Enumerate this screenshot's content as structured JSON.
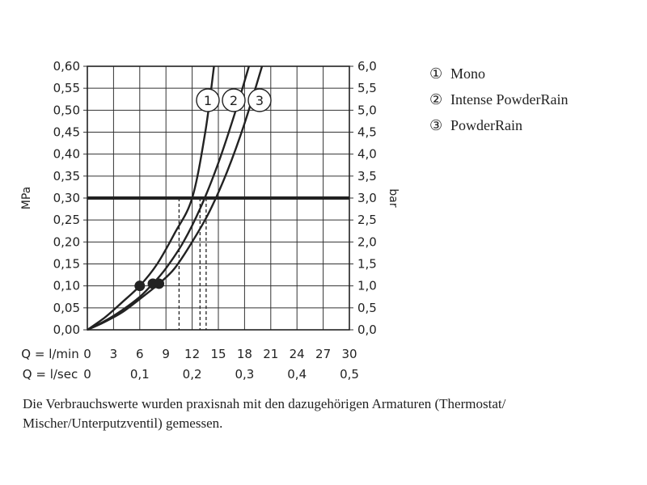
{
  "chart_data": {
    "type": "line",
    "ylabel": "MPa",
    "ylabel_right": "bar",
    "ylim": [
      0,
      0.6
    ],
    "ylim_right": [
      0,
      6
    ],
    "y_ticks": [
      "0,00",
      "0,05",
      "0,10",
      "0,15",
      "0,20",
      "0,25",
      "0,30",
      "0,35",
      "0,40",
      "0,45",
      "0,50",
      "0,55",
      "0,60"
    ],
    "y_ticks_right": [
      "0,0",
      "0,5",
      "1,0",
      "1,5",
      "2,0",
      "2,5",
      "3,0",
      "3,5",
      "4,0",
      "4,5",
      "5,0",
      "5,5",
      "6,0"
    ],
    "xlim": [
      0,
      30
    ],
    "x_axis_label": "Q = l/min",
    "x_ticks": [
      "0",
      "3",
      "6",
      "9",
      "12",
      "15",
      "18",
      "21",
      "24",
      "27",
      "30"
    ],
    "x2_axis_label": "Q = l/sec",
    "x2_ticks": [
      "0",
      "0,1",
      "0,2",
      "0,3",
      "0,4",
      "0,5"
    ],
    "reference_line": {
      "y": 0.3
    },
    "series": [
      {
        "name": "1",
        "x": [
          0,
          2,
          4,
          6,
          8,
          10,
          12,
          13.5,
          14.5
        ],
        "y": [
          0,
          0.028,
          0.063,
          0.1,
          0.15,
          0.22,
          0.3,
          0.45,
          0.6
        ],
        "point": {
          "x": 6,
          "y": 0.1
        },
        "drop_x": 10.5
      },
      {
        "name": "2",
        "x": [
          0,
          2,
          4,
          6,
          7.5,
          9,
          11,
          13,
          15,
          17,
          18.5
        ],
        "y": [
          0,
          0.02,
          0.045,
          0.075,
          0.105,
          0.14,
          0.2,
          0.28,
          0.38,
          0.5,
          0.6
        ],
        "point": {
          "x": 7.5,
          "y": 0.105
        },
        "drop_x": 12.9
      },
      {
        "name": "3",
        "x": [
          0,
          2,
          4,
          6,
          8.2,
          10,
          12,
          14,
          16,
          18,
          20
        ],
        "y": [
          0,
          0.018,
          0.04,
          0.07,
          0.105,
          0.14,
          0.2,
          0.27,
          0.36,
          0.47,
          0.6
        ],
        "point": {
          "x": 8.2,
          "y": 0.105
        },
        "drop_x": 13.6
      }
    ]
  },
  "legend": [
    {
      "symbol": "①",
      "label": "Mono"
    },
    {
      "symbol": "②",
      "label": "Intense PowderRain"
    },
    {
      "symbol": "③",
      "label": "PowderRain"
    }
  ],
  "note": "Die Verbrauchswerte wurden praxisnah mit den dazugehörigen Armaturen (Thermostat/ Mischer/Unterputzventil) gemessen."
}
